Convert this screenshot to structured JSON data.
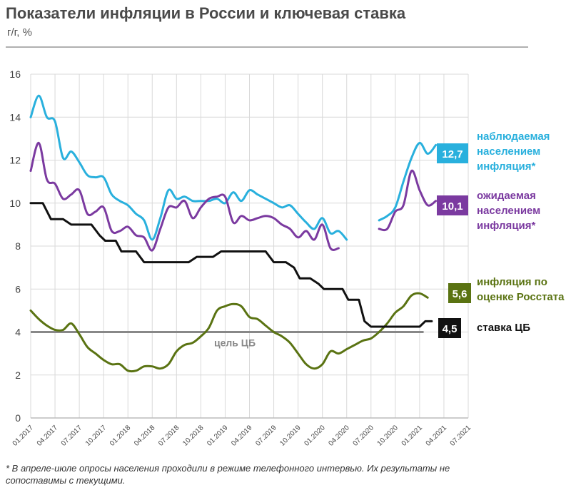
{
  "header": {
    "title": "Показатели инфляции в России и ключевая ставка",
    "subtitle": "г/г, %"
  },
  "footnote": "* В апреле-июле опросы населения проходили в режиме телефонного интервью. Их результаты не сопоставимы с текущими.",
  "colors": {
    "observed": "#29b0dd",
    "expected": "#7b3aa0",
    "rosstat": "#5a7312",
    "key_rate": "#111111",
    "target": "#888888",
    "grid": "#d9d9d9"
  },
  "chart_data": {
    "type": "line",
    "title": "Показатели инфляции в России и ключевая ставка",
    "ylabel": "г/г, %",
    "ylim": [
      0,
      16
    ],
    "yticks": [
      0,
      2,
      4,
      6,
      8,
      10,
      12,
      14,
      16
    ],
    "xlim": [
      0,
      54
    ],
    "x_unit": "months since 01.2017",
    "xticks": [
      {
        "x": 0,
        "label": "01.2017"
      },
      {
        "x": 3,
        "label": "04.2017"
      },
      {
        "x": 6,
        "label": "07.2017"
      },
      {
        "x": 9,
        "label": "10.2017"
      },
      {
        "x": 12,
        "label": "01.2018"
      },
      {
        "x": 15,
        "label": "04.2018"
      },
      {
        "x": 18,
        "label": "07.2018"
      },
      {
        "x": 21,
        "label": "10.2018"
      },
      {
        "x": 24,
        "label": "01.2019"
      },
      {
        "x": 27,
        "label": "04.2019"
      },
      {
        "x": 30,
        "label": "07.2019"
      },
      {
        "x": 33,
        "label": "10.2019"
      },
      {
        "x": 36,
        "label": "01.2020"
      },
      {
        "x": 39,
        "label": "04.2020"
      },
      {
        "x": 42,
        "label": "07.2020"
      },
      {
        "x": 45,
        "label": "10.2020"
      },
      {
        "x": 48,
        "label": "01.2021"
      },
      {
        "x": 51,
        "label": "04.2021"
      },
      {
        "x": 54,
        "label": "07.2021"
      }
    ],
    "target": {
      "value": 4,
      "label": "цель ЦБ"
    },
    "series": [
      {
        "name": "observed",
        "label_lines": [
          "наблюдаемая",
          "населением",
          "инфляция*"
        ],
        "end_value_label": "12,7",
        "segments": [
          [
            [
              0,
              14
            ],
            [
              1,
              15
            ],
            [
              2,
              14
            ],
            [
              3,
              13.8
            ],
            [
              4,
              12.1
            ],
            [
              5,
              12.4
            ],
            [
              6,
              11.9
            ],
            [
              7,
              11.3
            ],
            [
              8,
              11.2
            ],
            [
              9,
              11.2
            ],
            [
              10,
              10.4
            ],
            [
              11,
              10.1
            ],
            [
              12,
              9.9
            ],
            [
              13,
              9.5
            ],
            [
              14,
              9.2
            ],
            [
              15,
              8.3
            ],
            [
              16,
              9.3
            ],
            [
              17,
              10.6
            ],
            [
              18,
              10.2
            ],
            [
              19,
              10.3
            ],
            [
              20,
              10.1
            ],
            [
              21,
              10.1
            ],
            [
              22,
              10.1
            ],
            [
              23,
              10.2
            ],
            [
              24,
              10.0
            ],
            [
              25,
              10.5
            ],
            [
              26,
              10.1
            ],
            [
              27,
              10.6
            ],
            [
              28,
              10.4
            ],
            [
              29,
              10.2
            ],
            [
              30,
              10.0
            ],
            [
              31,
              9.8
            ],
            [
              32,
              9.9
            ],
            [
              33,
              9.5
            ],
            [
              34,
              9.1
            ],
            [
              35,
              8.8
            ],
            [
              36,
              9.3
            ],
            [
              37,
              8.6
            ],
            [
              38,
              8.7
            ],
            [
              39,
              8.3
            ]
          ],
          [
            [
              43,
              9.2
            ],
            [
              44,
              9.4
            ],
            [
              45,
              9.8
            ],
            [
              46,
              11.0
            ],
            [
              47,
              12.1
            ],
            [
              48,
              12.8
            ],
            [
              49,
              12.3
            ],
            [
              50,
              12.7
            ]
          ]
        ]
      },
      {
        "name": "expected",
        "label_lines": [
          "ожидаемая",
          "населением",
          "инфляция*"
        ],
        "end_value_label": "10,1",
        "segments": [
          [
            [
              0,
              11.5
            ],
            [
              1,
              12.8
            ],
            [
              2,
              11.1
            ],
            [
              3,
              10.9
            ],
            [
              4,
              10.2
            ],
            [
              5,
              10.4
            ],
            [
              6,
              10.6
            ],
            [
              7,
              9.5
            ],
            [
              8,
              9.6
            ],
            [
              9,
              9.8
            ],
            [
              10,
              8.7
            ],
            [
              11,
              8.7
            ],
            [
              12,
              8.9
            ],
            [
              13,
              8.5
            ],
            [
              14,
              8.4
            ],
            [
              15,
              7.8
            ],
            [
              16,
              8.8
            ],
            [
              17,
              9.8
            ],
            [
              18,
              9.8
            ],
            [
              19,
              10.1
            ],
            [
              20,
              9.3
            ],
            [
              21,
              9.8
            ],
            [
              22,
              10.2
            ],
            [
              23,
              10.3
            ],
            [
              24,
              10.3
            ],
            [
              25,
              9.1
            ],
            [
              26,
              9.4
            ],
            [
              27,
              9.2
            ],
            [
              28,
              9.3
            ],
            [
              29,
              9.4
            ],
            [
              30,
              9.3
            ],
            [
              31,
              9.0
            ],
            [
              32,
              8.8
            ],
            [
              33,
              8.4
            ],
            [
              34,
              8.7
            ],
            [
              35,
              8.3
            ],
            [
              36,
              9.0
            ],
            [
              37,
              7.9
            ],
            [
              38,
              7.9
            ]
          ],
          [
            [
              43,
              8.8
            ],
            [
              44,
              8.8
            ],
            [
              45,
              9.6
            ],
            [
              46,
              9.9
            ],
            [
              47,
              11.5
            ],
            [
              48,
              10.6
            ],
            [
              49,
              9.9
            ],
            [
              50,
              10.1
            ]
          ]
        ]
      },
      {
        "name": "rosstat",
        "label_lines": [
          "инфляция по",
          "оценке Росстата"
        ],
        "end_value_label": "5,6",
        "segments": [
          [
            [
              0,
              5.0
            ],
            [
              1,
              4.6
            ],
            [
              2,
              4.3
            ],
            [
              3,
              4.1
            ],
            [
              4,
              4.1
            ],
            [
              5,
              4.4
            ],
            [
              6,
              3.9
            ],
            [
              7,
              3.3
            ],
            [
              8,
              3.0
            ],
            [
              9,
              2.7
            ],
            [
              10,
              2.5
            ],
            [
              11,
              2.5
            ],
            [
              12,
              2.2
            ],
            [
              13,
              2.2
            ],
            [
              14,
              2.4
            ],
            [
              15,
              2.4
            ],
            [
              16,
              2.3
            ],
            [
              17,
              2.5
            ],
            [
              18,
              3.1
            ],
            [
              19,
              3.4
            ],
            [
              20,
              3.5
            ],
            [
              21,
              3.8
            ],
            [
              22,
              4.2
            ],
            [
              23,
              5.0
            ],
            [
              24,
              5.2
            ],
            [
              25,
              5.3
            ],
            [
              26,
              5.2
            ],
            [
              27,
              4.7
            ],
            [
              28,
              4.6
            ],
            [
              29,
              4.3
            ],
            [
              30,
              4.0
            ],
            [
              31,
              3.8
            ],
            [
              32,
              3.5
            ],
            [
              33,
              3.0
            ],
            [
              34,
              2.5
            ],
            [
              35,
              2.3
            ],
            [
              36,
              2.5
            ],
            [
              37,
              3.1
            ],
            [
              38,
              3.0
            ],
            [
              39,
              3.2
            ],
            [
              40,
              3.4
            ],
            [
              41,
              3.6
            ],
            [
              42,
              3.7
            ],
            [
              43,
              4.0
            ],
            [
              44,
              4.4
            ],
            [
              45,
              4.9
            ],
            [
              46,
              5.2
            ],
            [
              47,
              5.7
            ],
            [
              48,
              5.8
            ],
            [
              49,
              5.6
            ]
          ]
        ]
      },
      {
        "name": "key_rate",
        "label_lines": [
          "ставка ЦБ"
        ],
        "end_value_label": "4,5",
        "step": true,
        "segments": [
          [
            [
              0,
              10.0
            ],
            [
              1.5,
              10.0
            ],
            [
              2.5,
              9.25
            ],
            [
              4,
              9.25
            ],
            [
              5,
              9.0
            ],
            [
              7.5,
              9.0
            ],
            [
              8.5,
              8.5
            ],
            [
              9.2,
              8.25
            ],
            [
              10.5,
              8.25
            ],
            [
              11.2,
              7.75
            ],
            [
              13,
              7.75
            ],
            [
              14,
              7.25
            ],
            [
              19.5,
              7.25
            ],
            [
              20.5,
              7.5
            ],
            [
              22.5,
              7.5
            ],
            [
              23.5,
              7.75
            ],
            [
              29,
              7.75
            ],
            [
              30,
              7.25
            ],
            [
              31.5,
              7.25
            ],
            [
              32.5,
              7.0
            ],
            [
              33.2,
              6.5
            ],
            [
              34.5,
              6.5
            ],
            [
              35.5,
              6.25
            ],
            [
              36.2,
              6.0
            ],
            [
              38.5,
              6.0
            ],
            [
              39.2,
              5.5
            ],
            [
              40.5,
              5.5
            ],
            [
              41.2,
              4.5
            ],
            [
              42,
              4.25
            ],
            [
              48,
              4.25
            ],
            [
              48.7,
              4.5
            ],
            [
              49.5,
              4.5
            ]
          ]
        ]
      }
    ]
  }
}
